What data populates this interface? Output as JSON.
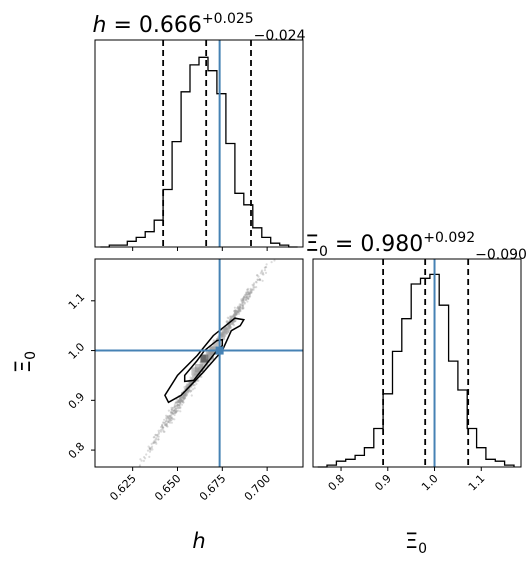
{
  "chart_data": [
    {
      "type": "histogram",
      "title": {
        "symbol": "h",
        "equals": " = ",
        "value": "0.666",
        "upper": "+0.025",
        "lower": "−0.024"
      },
      "xlim": [
        0.604,
        0.72
      ],
      "bin_edges": [
        0.607,
        0.612,
        0.617,
        0.622,
        0.627,
        0.632,
        0.637,
        0.642,
        0.647,
        0.652,
        0.657,
        0.662,
        0.667,
        0.672,
        0.677,
        0.682,
        0.687,
        0.692,
        0.697,
        0.702,
        0.707,
        0.712,
        0.717
      ],
      "counts": [
        0,
        1,
        1,
        3,
        5,
        8,
        14,
        30,
        55,
        81,
        95,
        99,
        92,
        80,
        54,
        28,
        22,
        10,
        5,
        2,
        1,
        0
      ],
      "ylim": [
        0,
        108
      ],
      "quantiles": [
        0.642,
        0.666,
        0.691
      ],
      "truth": 0.6735,
      "colors": {
        "hist": "#000000",
        "truth": "#4682b4"
      }
    },
    {
      "type": "histogram",
      "title": {
        "symbol": "Ξ",
        "subscript": "0",
        "equals": " = ",
        "value": "0.980",
        "upper": "+0.092",
        "lower": "−0.090"
      },
      "xlim": [
        0.74,
        1.185
      ],
      "xticks": [
        0.8,
        0.9,
        1.0,
        1.1
      ],
      "xticklabels": [
        "0.8",
        "0.9",
        "1.0",
        "1.1"
      ],
      "xlabel": {
        "symbol": "Ξ",
        "subscript": "0"
      },
      "bin_edges": [
        0.75,
        0.77,
        0.79,
        0.81,
        0.83,
        0.85,
        0.87,
        0.89,
        0.91,
        0.93,
        0.95,
        0.97,
        0.99,
        1.01,
        1.03,
        1.05,
        1.07,
        1.09,
        1.11,
        1.13,
        1.15,
        1.17
      ],
      "counts": [
        0,
        1,
        3,
        4,
        6,
        10,
        20,
        38,
        60,
        77,
        95,
        98,
        100,
        84,
        55,
        40,
        20,
        10,
        4,
        3,
        1
      ],
      "ylim": [
        0,
        108
      ],
      "quantiles": [
        0.89,
        0.98,
        1.072
      ],
      "truth": 1.0,
      "colors": {
        "hist": "#000000",
        "truth": "#4682b4"
      }
    },
    {
      "type": "scatter",
      "xlim": [
        0.604,
        0.72
      ],
      "ylim": [
        0.766,
        1.184
      ],
      "xticks": [
        0.625,
        0.65,
        0.675,
        0.7
      ],
      "xticklabels": [
        "0.625",
        "0.650",
        "0.675",
        "0.700"
      ],
      "yticks": [
        0.8,
        0.9,
        1.0,
        1.1
      ],
      "yticklabels": [
        "0.8",
        "0.9",
        "1.0",
        "1.1"
      ],
      "xlabel": {
        "symbol": "h"
      },
      "ylabel": {
        "symbol": "Ξ",
        "subscript": "0"
      },
      "center": [
        0.666,
        0.98
      ],
      "slope": 5.6,
      "sigma_along": 0.014,
      "sigma_perp": 0.018,
      "contours": [
        {
          "level": 1,
          "ring": [
            [
              0.672,
              1.0
            ],
            [
              0.667,
              0.977
            ],
            [
              0.659,
              0.94
            ],
            [
              0.654,
              0.938
            ],
            [
              0.654,
              0.95
            ],
            [
              0.661,
              0.98
            ],
            [
              0.665,
              1.0
            ],
            [
              0.672,
              1.02
            ],
            [
              0.675,
              1.022
            ],
            [
              0.675,
              1.01
            ]
          ]
        },
        {
          "level": 2,
          "ring": [
            [
              0.68,
              1.04
            ],
            [
              0.675,
              1.0
            ],
            [
              0.664,
              0.955
            ],
            [
              0.652,
              0.91
            ],
            [
              0.645,
              0.896
            ],
            [
              0.643,
              0.91
            ],
            [
              0.65,
              0.95
            ],
            [
              0.661,
              0.99
            ],
            [
              0.67,
              1.03
            ],
            [
              0.682,
              1.065
            ],
            [
              0.687,
              1.062
            ],
            [
              0.685,
              1.05
            ]
          ]
        }
      ],
      "truth": [
        0.6735,
        1.0
      ],
      "colors": {
        "points": "#9a9a9a",
        "contour": "#000000",
        "truth": "#4682b4"
      }
    }
  ]
}
